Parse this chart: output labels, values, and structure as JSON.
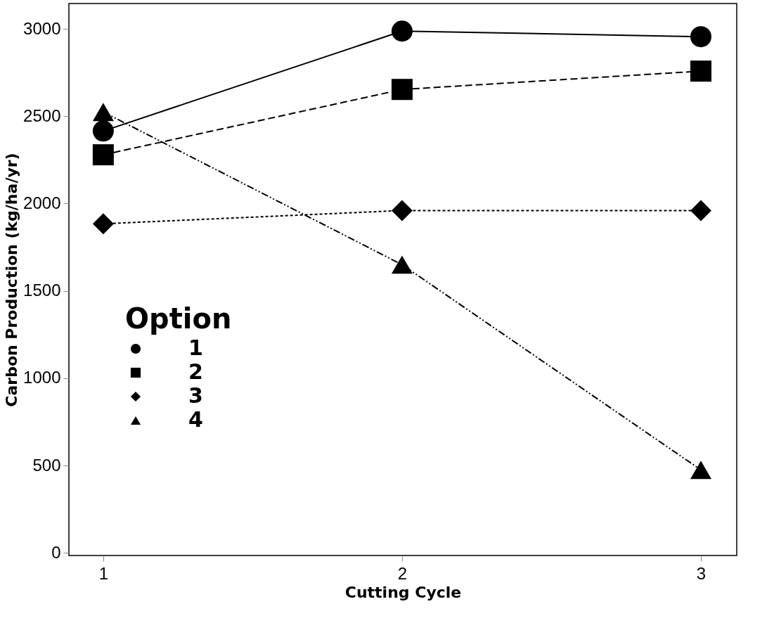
{
  "chart_data": {
    "type": "line",
    "xlabel": "Cutting Cycle",
    "ylabel": "Carbon Production (kg/ha/yr)",
    "legend_title": "Option",
    "x": [
      1,
      2,
      3
    ],
    "xlim": [
      0.885,
      3.12
    ],
    "xticks": [
      1,
      2,
      3
    ],
    "ylim": [
      -15,
      3145
    ],
    "yticks": [
      0,
      500,
      1000,
      1500,
      2000,
      2500,
      3000
    ],
    "grid": false,
    "legend": "bottom left",
    "series": [
      {
        "name": "1",
        "color": "#000000",
        "values": [
          2415,
          2987,
          2955
        ],
        "marker": "circle",
        "line_style": "solid"
      },
      {
        "name": "2",
        "color": "#000000",
        "values": [
          2279,
          2653,
          2758
        ],
        "marker": "square",
        "line_style": "dashed"
      },
      {
        "name": "3",
        "color": "#000000",
        "values": [
          1884,
          1960,
          1960
        ],
        "marker": "diamond",
        "line_style": "dotted"
      },
      {
        "name": "4",
        "color": "#000000",
        "values": [
          2524,
          1650,
          475
        ],
        "marker": "triangle",
        "line_style": "dashdotdot"
      }
    ]
  }
}
